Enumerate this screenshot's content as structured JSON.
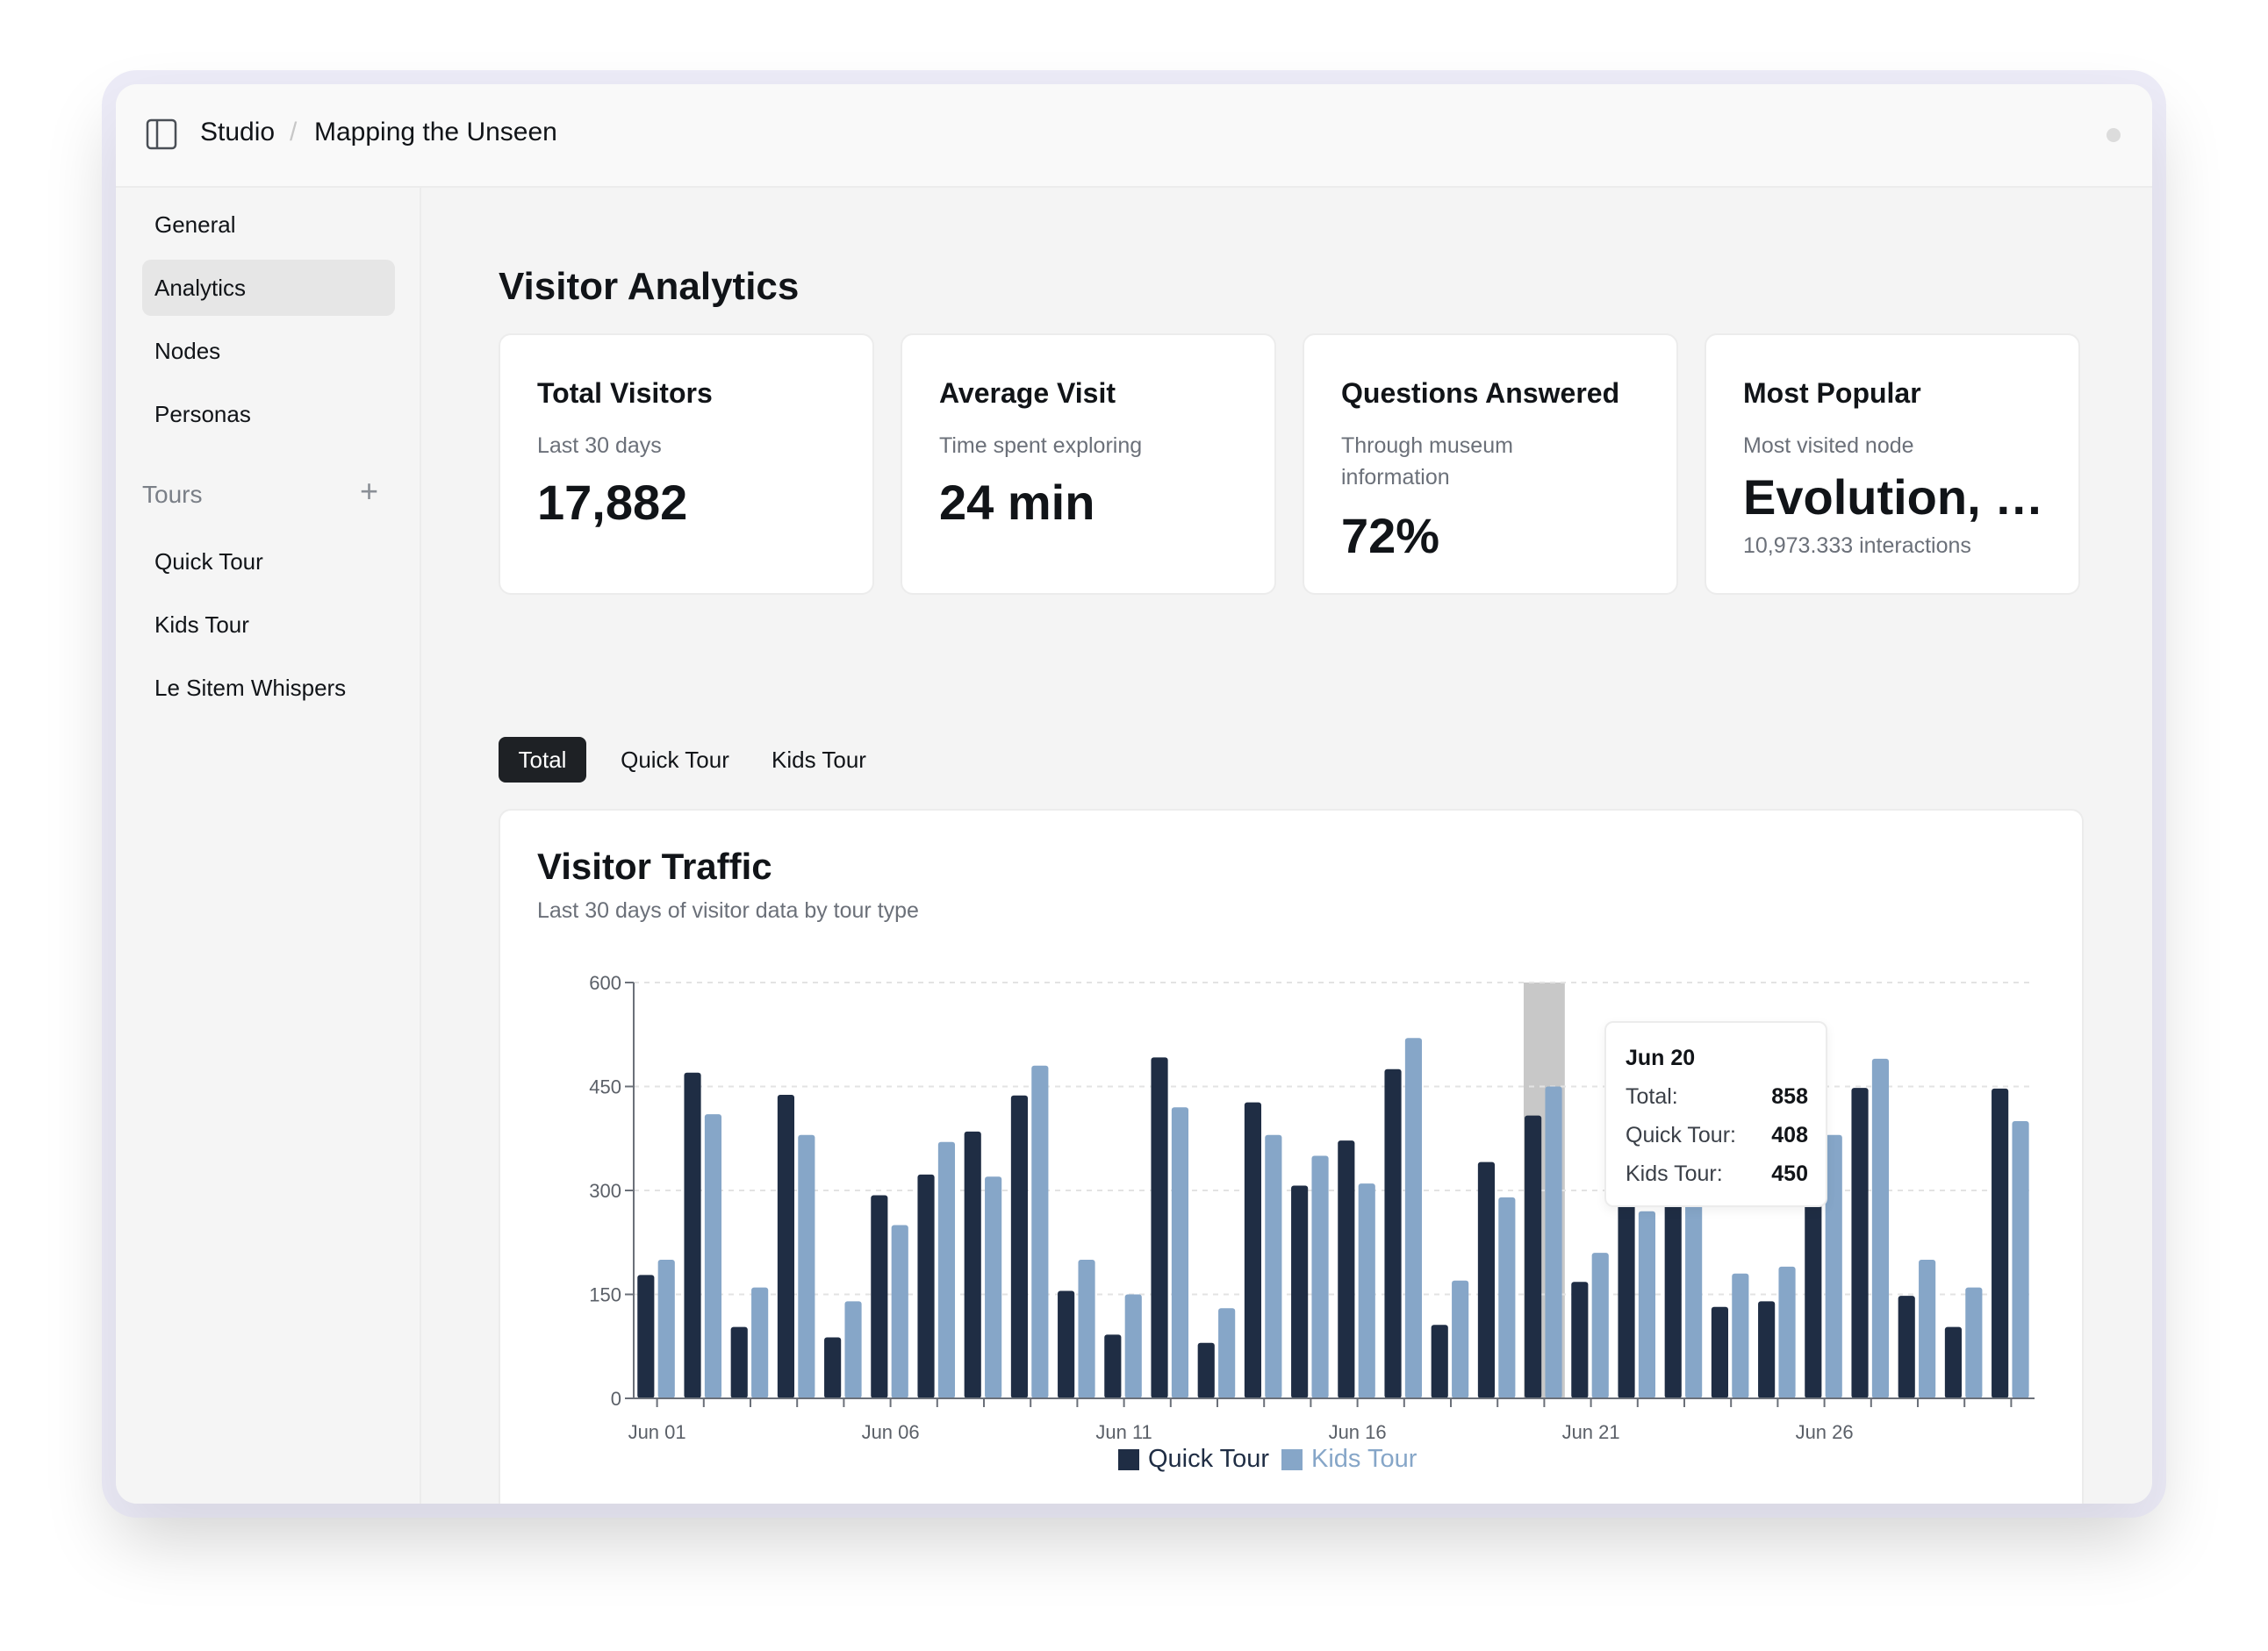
{
  "header": {
    "app": "Studio",
    "separator": "/",
    "project": "Mapping the Unseen"
  },
  "sidebar": {
    "items": [
      {
        "label": "General",
        "active": false
      },
      {
        "label": "Analytics",
        "active": true
      },
      {
        "label": "Nodes",
        "active": false
      },
      {
        "label": "Personas",
        "active": false
      }
    ],
    "tours_heading": "Tours",
    "add_icon": "+",
    "tours": [
      {
        "label": "Quick Tour"
      },
      {
        "label": "Kids Tour"
      },
      {
        "label": "Le Sitem Whispers"
      }
    ]
  },
  "page": {
    "title": "Visitor Analytics"
  },
  "stats": [
    {
      "title": "Total Visitors",
      "subtitle": "Last 30 days",
      "value": "17,882"
    },
    {
      "title": "Average Visit",
      "subtitle": "Time spent exploring",
      "value": "24 min"
    },
    {
      "title": "Questions Answered",
      "subtitle": "Through museum information",
      "value": "72%"
    },
    {
      "title": "Most Popular",
      "subtitle": "Most visited node",
      "value": "Evolution, N...",
      "footnote": "10,973.333 interactions"
    }
  ],
  "tabs": [
    {
      "label": "Total",
      "active": true
    },
    {
      "label": "Quick Tour",
      "active": false
    },
    {
      "label": "Kids Tour",
      "active": false
    }
  ],
  "chart_card": {
    "title": "Visitor Traffic",
    "subtitle": "Last 30 days of visitor data by tour type"
  },
  "colors": {
    "quick_tour": "#1f2d44",
    "kids_tour": "#86a6c8",
    "hover_band": "#c8c8c8",
    "active_tab": "#1e2125"
  },
  "chart_data": {
    "type": "bar",
    "ylim": [
      0,
      600
    ],
    "yticks": [
      0,
      150,
      300,
      450,
      600
    ],
    "categories": [
      "Jun 01",
      "Jun 02",
      "Jun 03",
      "Jun 04",
      "Jun 05",
      "Jun 06",
      "Jun 07",
      "Jun 08",
      "Jun 09",
      "Jun 10",
      "Jun 11",
      "Jun 12",
      "Jun 13",
      "Jun 14",
      "Jun 15",
      "Jun 16",
      "Jun 17",
      "Jun 18",
      "Jun 19",
      "Jun 20",
      "Jun 21",
      "Jun 22",
      "Jun 23",
      "Jun 24",
      "Jun 25",
      "Jun 26",
      "Jun 27",
      "Jun 28",
      "Jun 29",
      "Jun 30"
    ],
    "xtick_labels": [
      "Jun 01",
      "Jun 06",
      "Jun 11",
      "Jun 16",
      "Jun 21",
      "Jun 26"
    ],
    "series": [
      {
        "name": "Quick Tour",
        "values": [
          178,
          470,
          103,
          438,
          88,
          293,
          323,
          385,
          437,
          155,
          92,
          492,
          80,
          427,
          307,
          372,
          475,
          106,
          341,
          408,
          168,
          320,
          310,
          132,
          140,
          300,
          448,
          148,
          103,
          447
        ]
      },
      {
        "name": "Kids Tour",
        "values": [
          200,
          410,
          160,
          380,
          140,
          250,
          370,
          320,
          480,
          200,
          150,
          420,
          130,
          380,
          350,
          310,
          520,
          170,
          290,
          450,
          210,
          270,
          290,
          180,
          190,
          380,
          490,
          200,
          160,
          400
        ]
      }
    ],
    "legend": [
      "Quick Tour",
      "Kids Tour"
    ],
    "legend_position": "bottom-center",
    "grid": true,
    "highlighted_index": 19,
    "tooltip": {
      "date": "Jun 20",
      "rows": [
        {
          "label": "Total:",
          "value": "858"
        },
        {
          "label": "Quick Tour:",
          "value": "408"
        },
        {
          "label": "Kids Tour:",
          "value": "450"
        }
      ]
    }
  }
}
